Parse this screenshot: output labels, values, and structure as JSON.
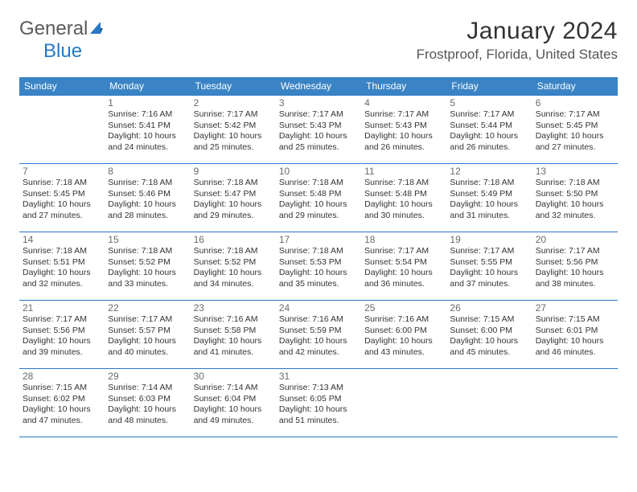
{
  "logo": {
    "text1": "General",
    "text2": "Blue"
  },
  "title": "January 2024",
  "location": "Frostproof, Florida, United States",
  "colors": {
    "headerBg": "#3a84c5",
    "headerText": "#ffffff",
    "rowBorder": "#2878c4",
    "dateNum": "#6a6a6a",
    "bodyText": "#333333",
    "logoGray": "#5a5a5a",
    "logoBlue": "#2878c4"
  },
  "typography": {
    "title_fontsize": 30,
    "location_fontsize": 17,
    "dayheader_fontsize": 12,
    "datenum_fontsize": 12,
    "detail_fontsize": 10.5
  },
  "dayNames": [
    "Sunday",
    "Monday",
    "Tuesday",
    "Wednesday",
    "Thursday",
    "Friday",
    "Saturday"
  ],
  "weeks": [
    [
      {
        "date": "",
        "sunrise": "",
        "sunset": "",
        "daylight": ""
      },
      {
        "date": "1",
        "sunrise": "Sunrise: 7:16 AM",
        "sunset": "Sunset: 5:41 PM",
        "daylight": "Daylight: 10 hours and 24 minutes."
      },
      {
        "date": "2",
        "sunrise": "Sunrise: 7:17 AM",
        "sunset": "Sunset: 5:42 PM",
        "daylight": "Daylight: 10 hours and 25 minutes."
      },
      {
        "date": "3",
        "sunrise": "Sunrise: 7:17 AM",
        "sunset": "Sunset: 5:43 PM",
        "daylight": "Daylight: 10 hours and 25 minutes."
      },
      {
        "date": "4",
        "sunrise": "Sunrise: 7:17 AM",
        "sunset": "Sunset: 5:43 PM",
        "daylight": "Daylight: 10 hours and 26 minutes."
      },
      {
        "date": "5",
        "sunrise": "Sunrise: 7:17 AM",
        "sunset": "Sunset: 5:44 PM",
        "daylight": "Daylight: 10 hours and 26 minutes."
      },
      {
        "date": "6",
        "sunrise": "Sunrise: 7:17 AM",
        "sunset": "Sunset: 5:45 PM",
        "daylight": "Daylight: 10 hours and 27 minutes."
      }
    ],
    [
      {
        "date": "7",
        "sunrise": "Sunrise: 7:18 AM",
        "sunset": "Sunset: 5:45 PM",
        "daylight": "Daylight: 10 hours and 27 minutes."
      },
      {
        "date": "8",
        "sunrise": "Sunrise: 7:18 AM",
        "sunset": "Sunset: 5:46 PM",
        "daylight": "Daylight: 10 hours and 28 minutes."
      },
      {
        "date": "9",
        "sunrise": "Sunrise: 7:18 AM",
        "sunset": "Sunset: 5:47 PM",
        "daylight": "Daylight: 10 hours and 29 minutes."
      },
      {
        "date": "10",
        "sunrise": "Sunrise: 7:18 AM",
        "sunset": "Sunset: 5:48 PM",
        "daylight": "Daylight: 10 hours and 29 minutes."
      },
      {
        "date": "11",
        "sunrise": "Sunrise: 7:18 AM",
        "sunset": "Sunset: 5:48 PM",
        "daylight": "Daylight: 10 hours and 30 minutes."
      },
      {
        "date": "12",
        "sunrise": "Sunrise: 7:18 AM",
        "sunset": "Sunset: 5:49 PM",
        "daylight": "Daylight: 10 hours and 31 minutes."
      },
      {
        "date": "13",
        "sunrise": "Sunrise: 7:18 AM",
        "sunset": "Sunset: 5:50 PM",
        "daylight": "Daylight: 10 hours and 32 minutes."
      }
    ],
    [
      {
        "date": "14",
        "sunrise": "Sunrise: 7:18 AM",
        "sunset": "Sunset: 5:51 PM",
        "daylight": "Daylight: 10 hours and 32 minutes."
      },
      {
        "date": "15",
        "sunrise": "Sunrise: 7:18 AM",
        "sunset": "Sunset: 5:52 PM",
        "daylight": "Daylight: 10 hours and 33 minutes."
      },
      {
        "date": "16",
        "sunrise": "Sunrise: 7:18 AM",
        "sunset": "Sunset: 5:52 PM",
        "daylight": "Daylight: 10 hours and 34 minutes."
      },
      {
        "date": "17",
        "sunrise": "Sunrise: 7:18 AM",
        "sunset": "Sunset: 5:53 PM",
        "daylight": "Daylight: 10 hours and 35 minutes."
      },
      {
        "date": "18",
        "sunrise": "Sunrise: 7:17 AM",
        "sunset": "Sunset: 5:54 PM",
        "daylight": "Daylight: 10 hours and 36 minutes."
      },
      {
        "date": "19",
        "sunrise": "Sunrise: 7:17 AM",
        "sunset": "Sunset: 5:55 PM",
        "daylight": "Daylight: 10 hours and 37 minutes."
      },
      {
        "date": "20",
        "sunrise": "Sunrise: 7:17 AM",
        "sunset": "Sunset: 5:56 PM",
        "daylight": "Daylight: 10 hours and 38 minutes."
      }
    ],
    [
      {
        "date": "21",
        "sunrise": "Sunrise: 7:17 AM",
        "sunset": "Sunset: 5:56 PM",
        "daylight": "Daylight: 10 hours and 39 minutes."
      },
      {
        "date": "22",
        "sunrise": "Sunrise: 7:17 AM",
        "sunset": "Sunset: 5:57 PM",
        "daylight": "Daylight: 10 hours and 40 minutes."
      },
      {
        "date": "23",
        "sunrise": "Sunrise: 7:16 AM",
        "sunset": "Sunset: 5:58 PM",
        "daylight": "Daylight: 10 hours and 41 minutes."
      },
      {
        "date": "24",
        "sunrise": "Sunrise: 7:16 AM",
        "sunset": "Sunset: 5:59 PM",
        "daylight": "Daylight: 10 hours and 42 minutes."
      },
      {
        "date": "25",
        "sunrise": "Sunrise: 7:16 AM",
        "sunset": "Sunset: 6:00 PM",
        "daylight": "Daylight: 10 hours and 43 minutes."
      },
      {
        "date": "26",
        "sunrise": "Sunrise: 7:15 AM",
        "sunset": "Sunset: 6:00 PM",
        "daylight": "Daylight: 10 hours and 45 minutes."
      },
      {
        "date": "27",
        "sunrise": "Sunrise: 7:15 AM",
        "sunset": "Sunset: 6:01 PM",
        "daylight": "Daylight: 10 hours and 46 minutes."
      }
    ],
    [
      {
        "date": "28",
        "sunrise": "Sunrise: 7:15 AM",
        "sunset": "Sunset: 6:02 PM",
        "daylight": "Daylight: 10 hours and 47 minutes."
      },
      {
        "date": "29",
        "sunrise": "Sunrise: 7:14 AM",
        "sunset": "Sunset: 6:03 PM",
        "daylight": "Daylight: 10 hours and 48 minutes."
      },
      {
        "date": "30",
        "sunrise": "Sunrise: 7:14 AM",
        "sunset": "Sunset: 6:04 PM",
        "daylight": "Daylight: 10 hours and 49 minutes."
      },
      {
        "date": "31",
        "sunrise": "Sunrise: 7:13 AM",
        "sunset": "Sunset: 6:05 PM",
        "daylight": "Daylight: 10 hours and 51 minutes."
      },
      {
        "date": "",
        "sunrise": "",
        "sunset": "",
        "daylight": ""
      },
      {
        "date": "",
        "sunrise": "",
        "sunset": "",
        "daylight": ""
      },
      {
        "date": "",
        "sunrise": "",
        "sunset": "",
        "daylight": ""
      }
    ]
  ]
}
